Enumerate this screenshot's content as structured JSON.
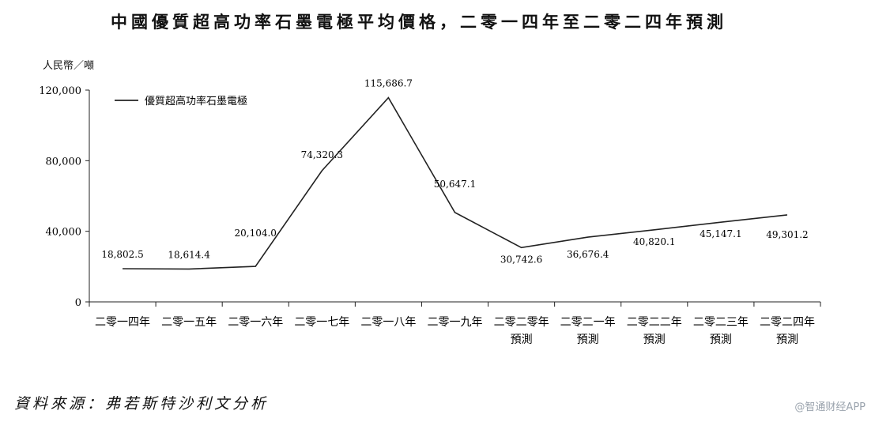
{
  "title": "中國優質超高功率石墨電極平均價格，二零一四年至二零二四年預測",
  "source": "資料來源：弗若斯特沙利文分析",
  "watermark": "@智通财经APP",
  "chart_data": {
    "type": "line",
    "ylabel": "人民幣／噸",
    "ylim": [
      0,
      120000
    ],
    "yticks": [
      "0",
      "40,000",
      "80,000",
      "120,000"
    ],
    "ytick_values": [
      0,
      40000,
      80000,
      120000
    ],
    "legend_position": "top-left",
    "grid": false,
    "categories": [
      [
        "二零一四年"
      ],
      [
        "二零一五年"
      ],
      [
        "二零一六年"
      ],
      [
        "二零一七年"
      ],
      [
        "二零一八年"
      ],
      [
        "二零一九年"
      ],
      [
        "二零二零年",
        "預測"
      ],
      [
        "二零二一年",
        "預測"
      ],
      [
        "二零二二年",
        "預測"
      ],
      [
        "二零二三年",
        "預測"
      ],
      [
        "二零二四年",
        "預測"
      ]
    ],
    "series": [
      {
        "name": "優質超高功率石墨電極",
        "color": "#222222",
        "values": [
          18802.5,
          18614.4,
          20104.0,
          74320.3,
          115686.7,
          50647.1,
          30742.6,
          36676.4,
          40820.1,
          45147.1,
          49301.2
        ],
        "labels": [
          "18,802.5",
          "18,614.4",
          "20,104.0",
          "74,320.3",
          "115,686.7",
          "50,647.1",
          "30,742.6",
          "36,676.4",
          "40,820.1",
          "45,147.1",
          "49,301.2"
        ]
      }
    ]
  }
}
